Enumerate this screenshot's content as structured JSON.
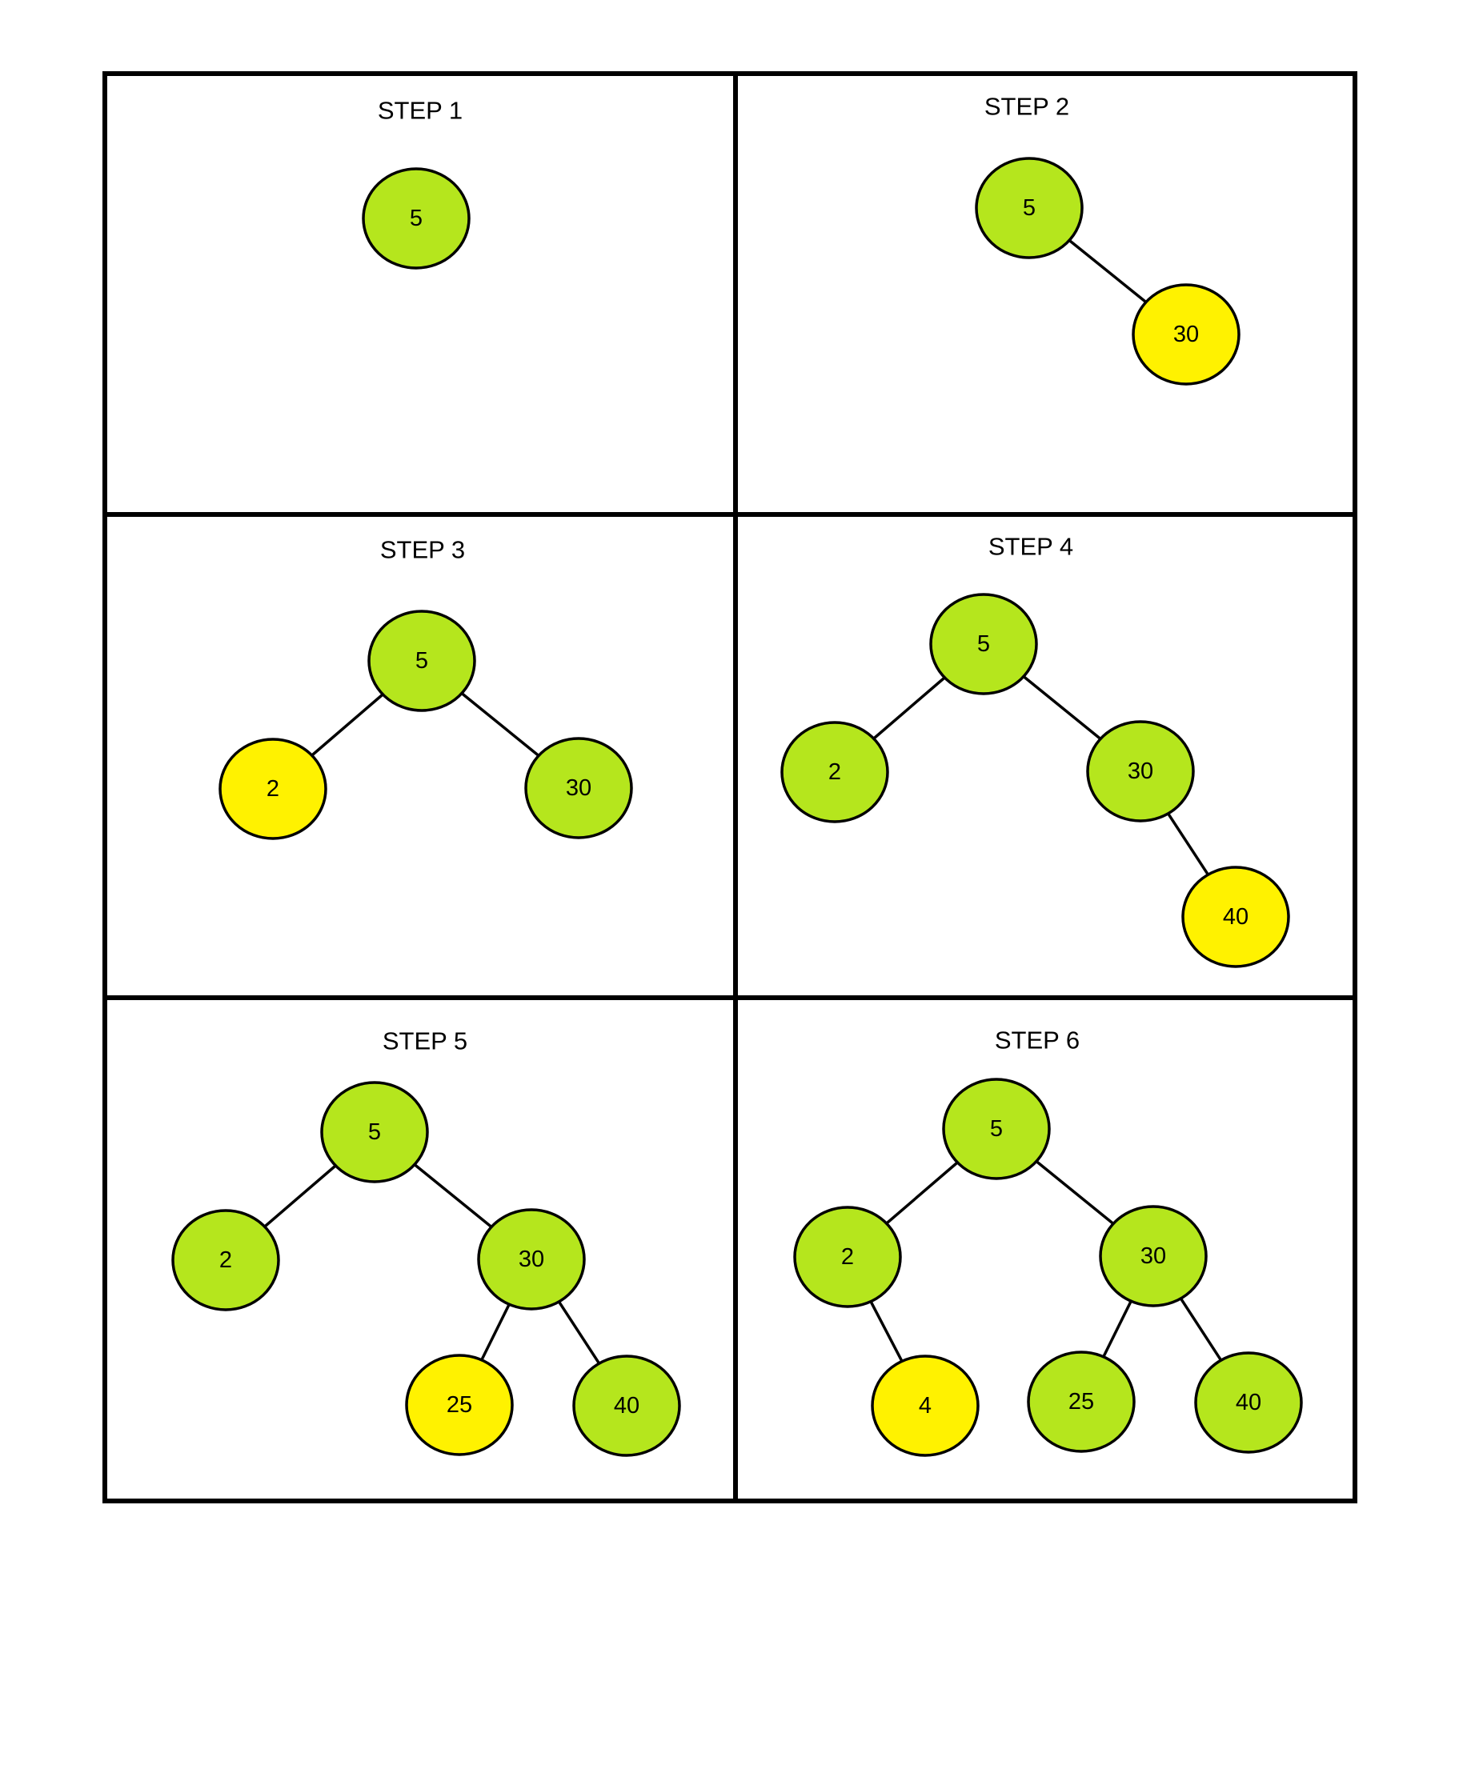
{
  "colors": {
    "existing_node": "#b5e61d",
    "new_node": "#fff200",
    "line": "#000000",
    "background": "#ffffff"
  },
  "steps": [
    {
      "title": "STEP 1",
      "nodes": [
        {
          "id": "n5",
          "label": "5",
          "state": "existing"
        }
      ],
      "edges": []
    },
    {
      "title": "STEP 2",
      "nodes": [
        {
          "id": "n5",
          "label": "5",
          "state": "existing"
        },
        {
          "id": "n30",
          "label": "30",
          "state": "new"
        }
      ],
      "edges": [
        [
          "n5",
          "n30"
        ]
      ]
    },
    {
      "title": "STEP 3",
      "nodes": [
        {
          "id": "n5",
          "label": "5",
          "state": "existing"
        },
        {
          "id": "n2",
          "label": "2",
          "state": "new"
        },
        {
          "id": "n30",
          "label": "30",
          "state": "existing"
        }
      ],
      "edges": [
        [
          "n5",
          "n2"
        ],
        [
          "n5",
          "n30"
        ]
      ]
    },
    {
      "title": "STEP 4",
      "nodes": [
        {
          "id": "n5",
          "label": "5",
          "state": "existing"
        },
        {
          "id": "n2",
          "label": "2",
          "state": "existing"
        },
        {
          "id": "n30",
          "label": "30",
          "state": "existing"
        },
        {
          "id": "n40",
          "label": "40",
          "state": "new"
        }
      ],
      "edges": [
        [
          "n5",
          "n2"
        ],
        [
          "n5",
          "n30"
        ],
        [
          "n30",
          "n40"
        ]
      ]
    },
    {
      "title": "STEP 5",
      "nodes": [
        {
          "id": "n5",
          "label": "5",
          "state": "existing"
        },
        {
          "id": "n2",
          "label": "2",
          "state": "existing"
        },
        {
          "id": "n30",
          "label": "30",
          "state": "existing"
        },
        {
          "id": "n25",
          "label": "25",
          "state": "new"
        },
        {
          "id": "n40",
          "label": "40",
          "state": "existing"
        }
      ],
      "edges": [
        [
          "n5",
          "n2"
        ],
        [
          "n5",
          "n30"
        ],
        [
          "n30",
          "n25"
        ],
        [
          "n30",
          "n40"
        ]
      ]
    },
    {
      "title": "STEP 6",
      "nodes": [
        {
          "id": "n5",
          "label": "5",
          "state": "existing"
        },
        {
          "id": "n2",
          "label": "2",
          "state": "existing"
        },
        {
          "id": "n4",
          "label": "4",
          "state": "new"
        },
        {
          "id": "n30",
          "label": "30",
          "state": "existing"
        },
        {
          "id": "n25",
          "label": "25",
          "state": "existing"
        },
        {
          "id": "n40",
          "label": "40",
          "state": "existing"
        }
      ],
      "edges": [
        [
          "n5",
          "n2"
        ],
        [
          "n2",
          "n4"
        ],
        [
          "n5",
          "n30"
        ],
        [
          "n30",
          "n25"
        ],
        [
          "n30",
          "n40"
        ]
      ]
    }
  ]
}
